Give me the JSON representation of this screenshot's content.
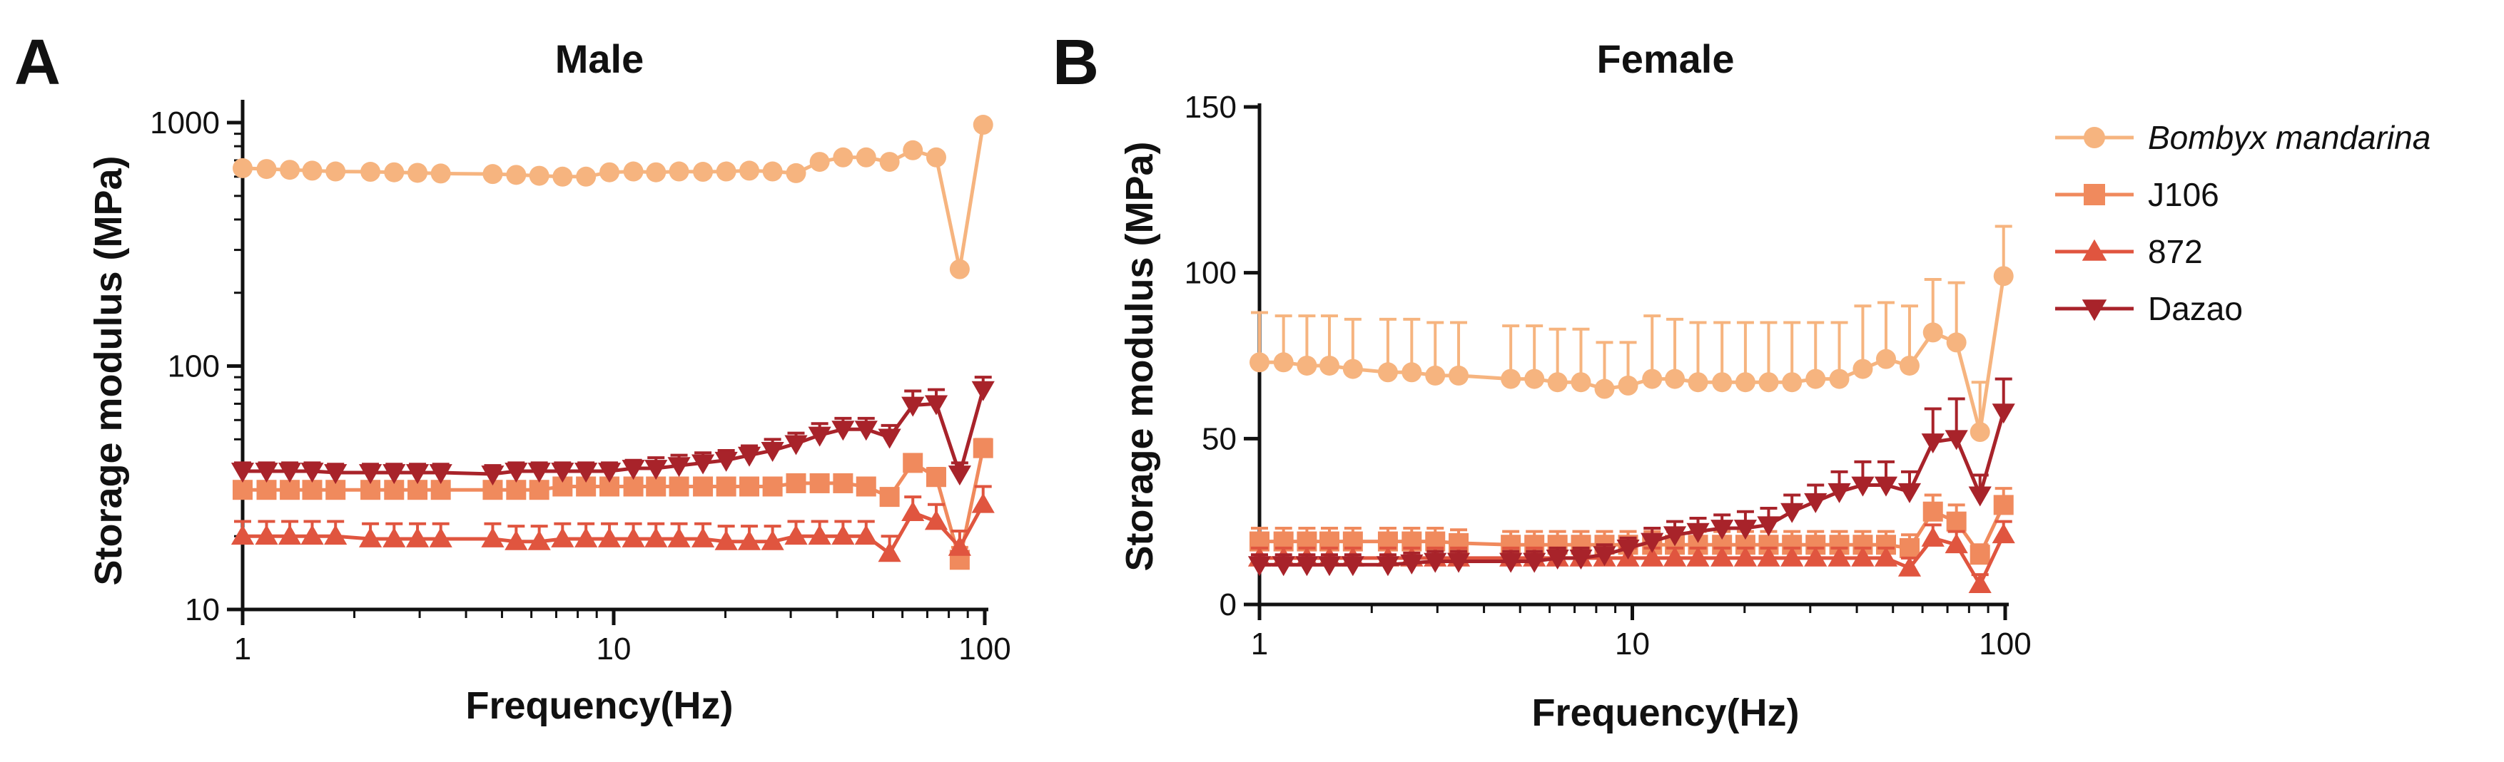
{
  "figure": {
    "panels": [
      "A",
      "B"
    ]
  },
  "chart_data": [
    {
      "type": "line",
      "panel": "A",
      "title": "Male",
      "xlabel": "Frequency(Hz)",
      "ylabel": "Storage modulus (MPa)",
      "xscale": "log",
      "yscale": "log",
      "xlim": [
        1,
        100
      ],
      "ylim": [
        10,
        1200
      ],
      "xticks": [
        1,
        10,
        100
      ],
      "xtick_labels": [
        "1",
        "10",
        "100"
      ],
      "yticks": [
        10,
        100,
        1000
      ],
      "ytick_labels": [
        "10",
        "100",
        "1000"
      ],
      "x": [
        1,
        1.16,
        1.34,
        1.54,
        1.78,
        2.21,
        2.56,
        2.96,
        3.42,
        4.72,
        5.46,
        6.3,
        7.28,
        8.42,
        9.74,
        11.3,
        13,
        15,
        17.4,
        20.1,
        23.2,
        26.8,
        31,
        35.9,
        41.5,
        47.9,
        55.4,
        64,
        74,
        85.6,
        99
      ],
      "series": [
        {
          "name": "Bombyx mandarina",
          "italic": true,
          "marker": "circle",
          "color": "#F6B47F",
          "values": [
            650,
            645,
            640,
            635,
            630,
            628,
            625,
            622,
            618,
            615,
            610,
            605,
            600,
            600,
            625,
            630,
            625,
            630,
            628,
            630,
            635,
            630,
            620,
            690,
            720,
            720,
            690,
            770,
            720,
            250,
            980
          ],
          "errors": [
            20,
            20,
            20,
            20,
            20,
            20,
            20,
            20,
            20,
            20,
            20,
            20,
            20,
            20,
            20,
            20,
            20,
            20,
            20,
            20,
            20,
            20,
            20,
            20,
            20,
            20,
            20,
            20,
            20,
            10,
            30
          ]
        },
        {
          "name": "J106",
          "italic": false,
          "marker": "square",
          "color": "#F08A5D",
          "values": [
            31,
            31,
            31,
            31,
            31,
            31,
            31,
            31,
            31,
            31,
            31,
            31,
            32,
            32,
            32,
            32,
            32,
            32,
            32,
            32,
            32,
            32,
            33,
            33,
            33,
            32,
            29,
            40,
            35,
            16,
            46
          ],
          "errors": [
            2,
            2,
            2,
            2,
            2,
            2,
            2,
            2,
            2,
            2,
            2,
            2,
            2,
            2,
            2,
            2,
            2,
            2,
            2,
            2,
            2,
            2,
            2,
            2,
            2,
            2,
            2,
            3,
            3,
            2,
            4
          ]
        },
        {
          "name": "872",
          "italic": false,
          "marker": "triangle-up",
          "color": "#E0553F",
          "values": [
            20,
            20,
            20,
            20,
            20,
            19.5,
            19.5,
            19.5,
            19.5,
            19.5,
            19,
            19,
            19.5,
            19.5,
            19.5,
            19.5,
            19.5,
            19.5,
            19.5,
            19,
            19,
            19,
            20,
            20,
            20,
            20,
            17,
            25,
            23,
            18,
            27
          ],
          "errors": [
            3,
            3,
            3,
            3,
            3,
            3,
            3,
            3,
            3,
            3,
            3,
            3,
            3,
            3,
            3,
            3,
            3,
            3,
            3,
            3,
            3,
            3,
            3,
            3,
            3,
            3,
            3,
            4,
            4,
            3,
            5
          ]
        },
        {
          "name": "Dazao",
          "italic": false,
          "marker": "triangle-down",
          "color": "#A8232A",
          "values": [
            37,
            37,
            37,
            37,
            36.5,
            36.5,
            36.5,
            36.5,
            36.5,
            36,
            37,
            37,
            37,
            37,
            37,
            38,
            38,
            39,
            40,
            41,
            43,
            45,
            48,
            52,
            55,
            55,
            51,
            69,
            70,
            36,
            80
          ],
          "errors": [
            3,
            3,
            3,
            3,
            3,
            3,
            3,
            3,
            3,
            3,
            3,
            3,
            3,
            3,
            3,
            3,
            4,
            4,
            4,
            4,
            4,
            5,
            5,
            6,
            6,
            6,
            6,
            10,
            10,
            4,
            10
          ]
        }
      ]
    },
    {
      "type": "line",
      "panel": "B",
      "title": "Female",
      "xlabel": "Frequency(Hz)",
      "ylabel": "Storage modulus (MPa)",
      "xscale": "log",
      "yscale": "linear",
      "xlim": [
        1,
        100
      ],
      "ylim": [
        0,
        150
      ],
      "xticks": [
        1,
        10,
        100
      ],
      "xtick_labels": [
        "1",
        "10",
        "100"
      ],
      "yticks": [
        0,
        50,
        100,
        150
      ],
      "ytick_labels": [
        "0",
        "50",
        "100",
        "150"
      ],
      "x": [
        1,
        1.16,
        1.34,
        1.54,
        1.78,
        2.21,
        2.56,
        2.96,
        3.42,
        4.72,
        5.46,
        6.3,
        7.28,
        8.42,
        9.74,
        11.3,
        13,
        15,
        17.4,
        20.1,
        23.2,
        26.8,
        31,
        35.9,
        41.5,
        47.9,
        55.4,
        64,
        74,
        85.6,
        99
      ],
      "series": [
        {
          "name": "Bombyx mandarina",
          "italic": true,
          "marker": "circle",
          "color": "#F6B47F",
          "values": [
            73,
            73,
            72,
            72,
            71,
            70,
            70,
            69,
            69,
            68,
            68,
            67,
            67,
            65,
            66,
            68,
            68,
            67,
            67,
            67,
            67,
            67,
            68,
            68,
            71,
            74,
            72,
            82,
            79,
            52,
            99
          ],
          "errors": [
            15,
            14,
            15,
            15,
            15,
            16,
            16,
            16,
            16,
            16,
            16,
            16,
            16,
            14,
            13,
            19,
            18,
            18,
            18,
            18,
            18,
            18,
            17,
            17,
            19,
            17,
            18,
            16,
            18,
            15,
            15
          ]
        },
        {
          "name": "J106",
          "italic": false,
          "marker": "square",
          "color": "#F08A5D",
          "values": [
            19,
            19,
            19,
            19,
            19,
            19,
            19,
            19,
            18.5,
            18,
            18,
            18,
            18,
            18,
            18,
            18,
            18,
            18,
            18,
            18,
            18,
            18,
            18,
            18,
            18,
            18,
            17,
            28,
            25,
            15,
            30
          ],
          "errors": [
            4,
            4,
            4,
            4,
            4,
            4,
            4,
            4,
            4,
            4,
            4,
            4,
            4,
            4,
            4,
            4,
            4,
            4,
            4,
            4,
            4,
            4,
            4,
            4,
            4,
            4,
            4,
            5,
            5,
            3,
            5
          ]
        },
        {
          "name": "872",
          "italic": false,
          "marker": "triangle-up",
          "color": "#E0553F",
          "values": [
            14,
            14,
            14,
            14,
            14,
            14,
            14,
            14,
            14,
            14,
            14,
            14,
            14,
            14,
            14,
            14,
            14,
            14,
            14,
            14,
            14,
            14,
            14,
            14,
            14,
            14,
            11,
            20,
            18,
            6,
            21
          ],
          "errors": [
            3,
            3,
            3,
            3,
            3,
            3,
            3,
            3,
            3,
            3,
            3,
            3,
            3,
            3,
            3,
            3,
            3,
            3,
            3,
            3,
            3,
            3,
            3,
            3,
            3,
            3,
            3,
            4,
            4,
            3,
            4
          ]
        },
        {
          "name": "Dazao",
          "italic": false,
          "marker": "triangle-down",
          "color": "#A8232A",
          "values": [
            12,
            12,
            12,
            12,
            12,
            12,
            12.5,
            13,
            13,
            13,
            13,
            14,
            14,
            15,
            17,
            19,
            21,
            22,
            23,
            23,
            24,
            28,
            31,
            34,
            36,
            36,
            34,
            49,
            50,
            33,
            58
          ],
          "errors": [
            3,
            3,
            3,
            3,
            3,
            3,
            3,
            3,
            3,
            3,
            3,
            3,
            3,
            3,
            3,
            4,
            4,
            4,
            4,
            5,
            5,
            5,
            5,
            6,
            7,
            7,
            6,
            10,
            12,
            6,
            10
          ]
        }
      ]
    }
  ],
  "legend": {
    "placement": "right",
    "entries": [
      {
        "label": "Bombyx mandarina",
        "italic": true,
        "marker": "circle",
        "color": "#F6B47F"
      },
      {
        "label": "J106",
        "italic": false,
        "marker": "square",
        "color": "#F08A5D"
      },
      {
        "label": "872",
        "italic": false,
        "marker": "triangle-up",
        "color": "#E0553F"
      },
      {
        "label": "Dazao",
        "italic": false,
        "marker": "triangle-down",
        "color": "#A8232A"
      }
    ]
  }
}
